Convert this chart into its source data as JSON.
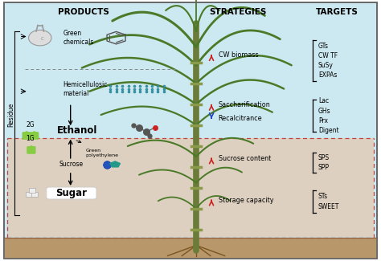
{
  "title_products": "PRODUCTS",
  "title_strategies": "STRATEGIES",
  "title_targets": "TARGETS",
  "residue_label": "Residue",
  "bg_blue": "#cce8f0",
  "bg_beige": "#ddd0c0",
  "bg_soil": "#b8976a",
  "border_gray": "#777777",
  "border_red_dashed": "#cc4444",
  "fig_w": 4.74,
  "fig_h": 3.25,
  "dpi": 100
}
